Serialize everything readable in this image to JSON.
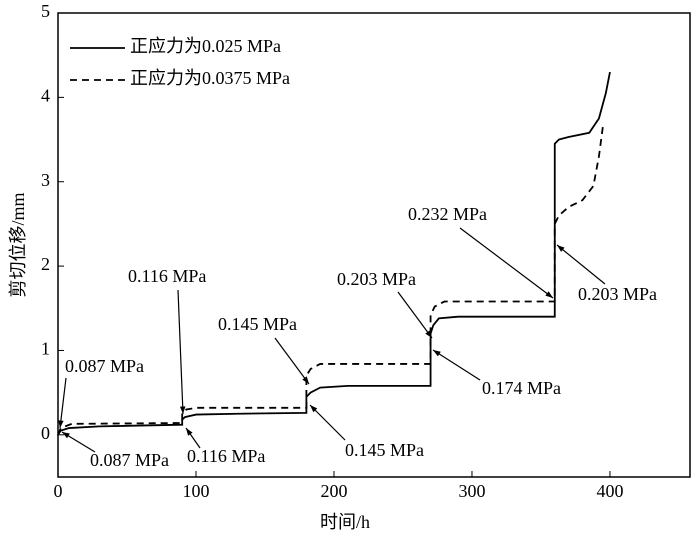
{
  "chart_data": {
    "type": "line",
    "xlabel": "时间/h",
    "ylabel": "剪切位移/mm",
    "xlim": [
      0,
      458
    ],
    "ylim": [
      -0.5,
      5
    ],
    "xticks": [
      0,
      100,
      200,
      300,
      400
    ],
    "yticks": [
      0,
      1,
      2,
      3,
      4,
      5
    ],
    "legend": "upper left",
    "series": [
      {
        "name": "正应力为0.025 MPa",
        "color": "#000000",
        "dash": false,
        "x": [
          0,
          2,
          8,
          30,
          90,
          90,
          92,
          100,
          130,
          180,
          180,
          183,
          190,
          210,
          270,
          270,
          272,
          276,
          290,
          360,
          360,
          363,
          370,
          385,
          392,
          397,
          400
        ],
        "values": [
          0,
          0.05,
          0.08,
          0.1,
          0.12,
          0.18,
          0.21,
          0.24,
          0.25,
          0.26,
          0.45,
          0.5,
          0.56,
          0.58,
          0.58,
          1.2,
          1.3,
          1.38,
          1.4,
          1.4,
          3.45,
          3.5,
          3.53,
          3.58,
          3.75,
          4.05,
          4.3
        ]
      },
      {
        "name": "正应力为0.0375 MPa",
        "color": "#000000",
        "dash": true,
        "x": [
          0,
          2,
          10,
          90,
          90,
          93,
          100,
          180,
          180,
          183,
          190,
          270,
          270,
          273,
          280,
          360,
          360,
          363,
          370,
          380,
          388,
          392,
          395
        ],
        "values": [
          0,
          0.08,
          0.13,
          0.14,
          0.26,
          0.3,
          0.32,
          0.32,
          0.7,
          0.78,
          0.84,
          0.84,
          1.42,
          1.52,
          1.58,
          1.58,
          2.5,
          2.6,
          2.7,
          2.78,
          2.95,
          3.3,
          3.67
        ]
      }
    ],
    "annotations": [
      "0.087 MPa",
      "0.087 MPa",
      "0.116 MPa",
      "0.116 MPa",
      "0.145 MPa",
      "0.145 MPa",
      "0.203 MPa",
      "0.174 MPa",
      "0.232 MPa",
      "0.203 MPa"
    ]
  }
}
